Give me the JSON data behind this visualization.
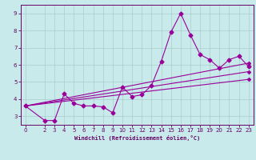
{
  "background_color": "#c8eaea",
  "line_color": "#990099",
  "grid_color": "#aacccc",
  "axis_color": "#660066",
  "xlabel": "Windchill (Refroidissement éolien,°C)",
  "ylim": [
    2.5,
    9.5
  ],
  "xlim": [
    -0.5,
    23.5
  ],
  "yticks": [
    3,
    4,
    5,
    6,
    7,
    8,
    9
  ],
  "xticks": [
    0,
    2,
    3,
    4,
    5,
    6,
    7,
    8,
    9,
    10,
    11,
    12,
    13,
    14,
    15,
    16,
    17,
    18,
    19,
    20,
    21,
    22,
    23
  ],
  "series": [
    {
      "x": [
        0,
        2,
        3,
        4,
        5,
        6,
        7,
        8,
        9,
        10,
        11,
        12,
        13,
        14,
        15,
        16,
        17,
        18,
        19,
        20,
        21,
        22,
        23
      ],
      "y": [
        3.6,
        2.75,
        2.75,
        4.3,
        3.75,
        3.6,
        3.6,
        3.55,
        3.2,
        4.7,
        4.15,
        4.25,
        4.8,
        6.2,
        7.9,
        9.0,
        7.75,
        6.6,
        6.3,
        5.8,
        6.3,
        6.5,
        5.9
      ]
    },
    {
      "x": [
        0,
        23
      ],
      "y": [
        3.6,
        6.1
      ]
    },
    {
      "x": [
        0,
        23
      ],
      "y": [
        3.6,
        5.6
      ]
    },
    {
      "x": [
        0,
        23
      ],
      "y": [
        3.6,
        5.15
      ]
    }
  ]
}
